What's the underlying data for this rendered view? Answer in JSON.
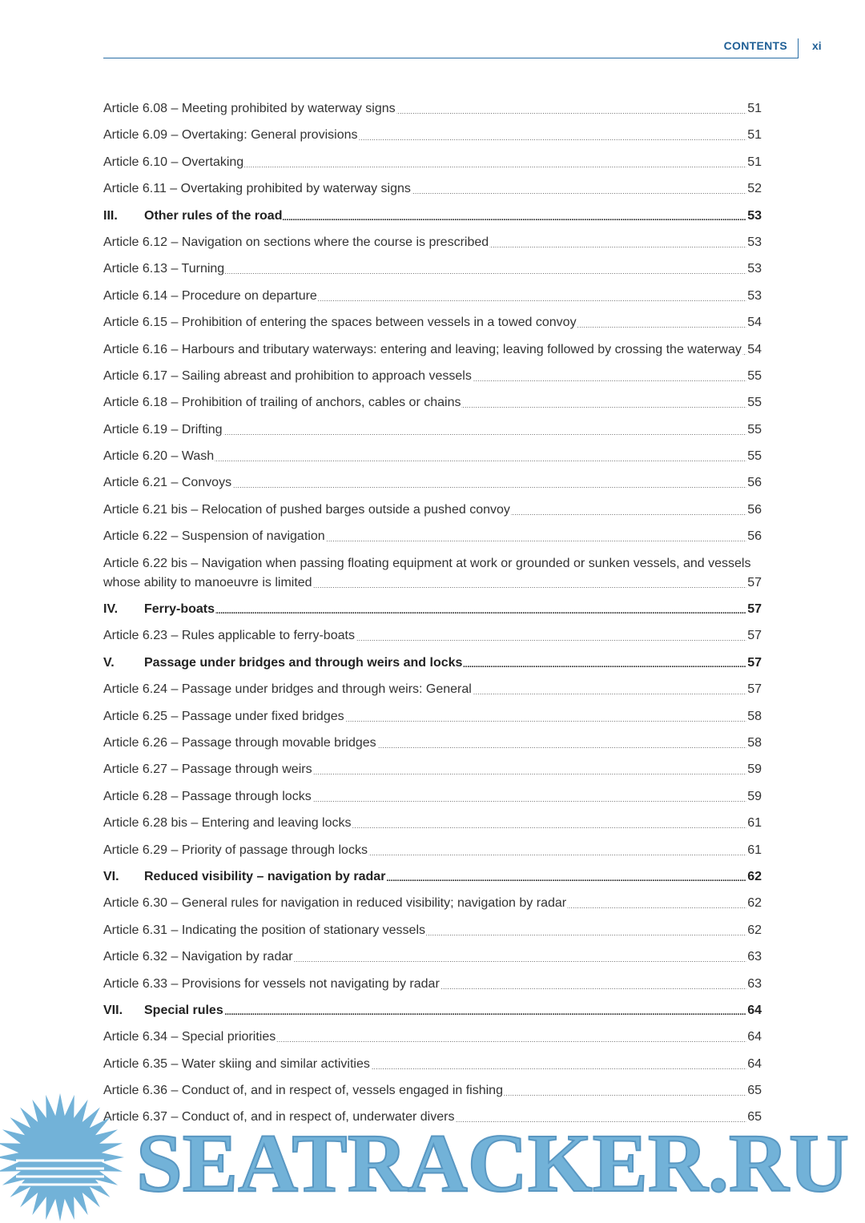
{
  "header": {
    "title": "CONTENTS",
    "page": "xi"
  },
  "entries": [
    {
      "label": "Article 6.08 – Meeting prohibited by waterway signs",
      "page": "51"
    },
    {
      "label": "Article 6.09 – Overtaking: General provisions",
      "page": "51"
    },
    {
      "label": "Article 6.10 – Overtaking",
      "page": "51"
    },
    {
      "label": "Article 6.11 – Overtaking prohibited by waterway signs",
      "page": "52"
    },
    {
      "number": "III.",
      "label": "Other rules of the road",
      "page": "53"
    },
    {
      "label": "Article 6.12 – Navigation on sections where the course is prescribed",
      "page": "53"
    },
    {
      "label": "Article 6.13 – Turning",
      "page": "53"
    },
    {
      "label": "Article 6.14 – Procedure on departure",
      "page": "53"
    },
    {
      "label": "Article 6.15 – Prohibition of entering the spaces between vessels in a towed convoy",
      "page": "54"
    },
    {
      "label": "Article 6.16 – Harbours and tributary waterways: entering and leaving; leaving followed by crossing the waterway",
      "page": "54"
    },
    {
      "label": "Article 6.17 – Sailing abreast and prohibition to approach vessels",
      "page": "55"
    },
    {
      "label": "Article 6.18 – Prohibition of trailing of anchors, cables or chains",
      "page": "55"
    },
    {
      "label": "Article 6.19 – Drifting",
      "page": "55"
    },
    {
      "label": "Article 6.20 – Wash",
      "page": "55"
    },
    {
      "label": "Article 6.21 – Convoys",
      "page": "56"
    },
    {
      "label": "Article 6.21 bis – Relocation of pushed barges outside a pushed convoy",
      "page": "56"
    },
    {
      "label": "Article 6.22 – Suspension of navigation",
      "page": "56"
    },
    {
      "label": "Article 6.22 bis – Navigation when passing floating equipment at work or grounded or sunken vessels, and vessels whose ability to manoeuvre is limited",
      "page": "57"
    },
    {
      "number": "IV.",
      "label": "Ferry-boats",
      "page": "57"
    },
    {
      "label": "Article 6.23 – Rules applicable to ferry-boats",
      "page": "57"
    },
    {
      "number": "V.",
      "label": "Passage under bridges and through weirs and locks",
      "page": "57"
    },
    {
      "label": "Article 6.24 – Passage under bridges and through weirs: General",
      "page": "57"
    },
    {
      "label": "Article 6.25 – Passage under fixed bridges",
      "page": "58"
    },
    {
      "label": "Article 6.26 – Passage through movable bridges",
      "page": "58"
    },
    {
      "label": "Article 6.27 – Passage through weirs",
      "page": "59"
    },
    {
      "label": "Article 6.28 – Passage through locks",
      "page": "59"
    },
    {
      "label": "Article 6.28 bis – Entering and leaving locks",
      "page": "61"
    },
    {
      "label": "Article 6.29 – Priority of passage through locks",
      "page": "61"
    },
    {
      "number": "VI.",
      "label": "Reduced visibility – navigation by radar",
      "page": "62"
    },
    {
      "label": "Article 6.30 – General rules for navigation in reduced visibility; navigation by radar",
      "page": "62"
    },
    {
      "label": "Article 6.31 – Indicating the position of stationary vessels",
      "page": "62"
    },
    {
      "label": "Article 6.32 – Navigation by radar",
      "page": "63"
    },
    {
      "label": "Article 6.33 – Provisions for vessels not navigating by radar",
      "page": "63"
    },
    {
      "number": "VII.",
      "label": "Special rules",
      "page": "64"
    },
    {
      "label": "Article 6.34 – Special priorities",
      "page": "64"
    },
    {
      "label": "Article 6.35 – Water skiing and similar activities",
      "page": "64"
    },
    {
      "label": "Article 6.36 – Conduct of, and in respect of, vessels engaged in fishing",
      "page": "65"
    },
    {
      "label": "Article 6.37 – Conduct of, and in respect of, underwater divers",
      "page": "65"
    }
  ],
  "watermark": "SEATRACKER.RU"
}
